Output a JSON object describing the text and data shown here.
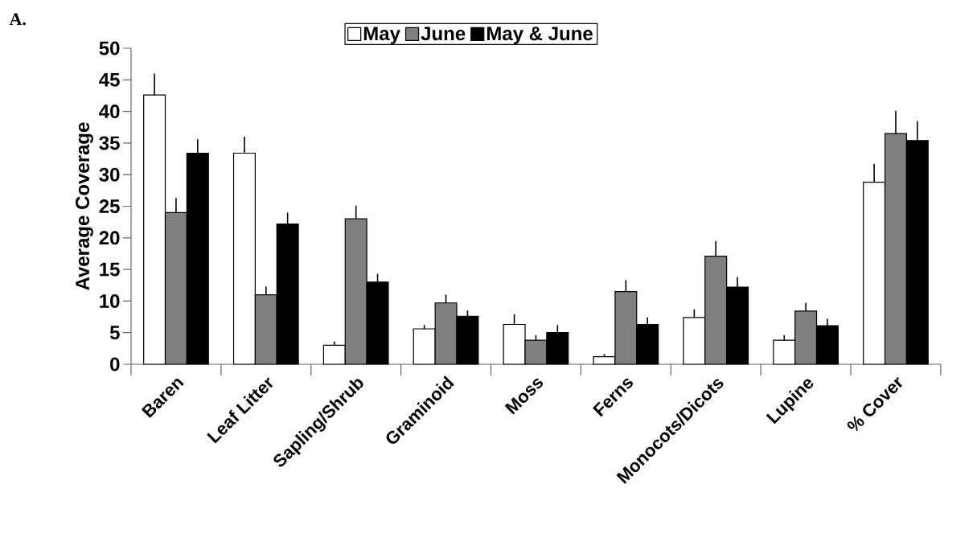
{
  "chart_data": {
    "type": "bar",
    "ylabel": "Average Coverage",
    "categories": [
      "Baren",
      "Leaf Litter",
      "Sapling/Shrub",
      "Graminoid",
      "Moss",
      "Ferns",
      "Monocots/Dicots",
      "Lupine",
      "% Cover"
    ],
    "series": [
      {
        "name": "May",
        "color": "#ffffff",
        "values": [
          42.6,
          33.4,
          3.0,
          5.6,
          6.3,
          1.2,
          7.4,
          3.8,
          28.8
        ],
        "errors": [
          [
            42.6,
            46.0
          ],
          [
            33.4,
            36.0
          ],
          [
            3.0,
            3.6
          ],
          [
            5.6,
            6.2
          ],
          [
            6.3,
            7.9
          ],
          [
            1.2,
            1.6
          ],
          [
            7.4,
            8.7
          ],
          [
            3.8,
            4.6
          ],
          [
            28.8,
            31.7
          ]
        ]
      },
      {
        "name": "June",
        "color": "#808080",
        "values": [
          24.0,
          11.0,
          23.0,
          9.7,
          3.8,
          11.5,
          17.1,
          8.4,
          36.5
        ],
        "errors": [
          [
            24.0,
            26.3
          ],
          [
            11.0,
            12.3
          ],
          [
            23.0,
            25.1
          ],
          [
            9.7,
            11.0
          ],
          [
            3.8,
            4.6
          ],
          [
            11.5,
            13.3
          ],
          [
            17.1,
            19.5
          ],
          [
            8.4,
            9.7
          ],
          [
            36.5,
            40.1
          ]
        ]
      },
      {
        "name": "May & June",
        "color": "#000000",
        "values": [
          33.4,
          22.2,
          13.0,
          7.6,
          5.0,
          6.3,
          12.2,
          6.1,
          35.4
        ],
        "errors": [
          [
            33.4,
            35.6
          ],
          [
            22.2,
            24.0
          ],
          [
            13.0,
            14.3
          ],
          [
            7.6,
            8.5
          ],
          [
            5.0,
            6.2
          ],
          [
            6.3,
            7.4
          ],
          [
            12.2,
            13.8
          ],
          [
            6.1,
            7.2
          ],
          [
            35.4,
            38.5
          ]
        ]
      }
    ],
    "ylim": [
      0,
      50
    ],
    "yticks": [
      0,
      5,
      10,
      15,
      20,
      25,
      30,
      35,
      40,
      45,
      50
    ],
    "legend": "top",
    "annotations": [
      "A."
    ]
  }
}
